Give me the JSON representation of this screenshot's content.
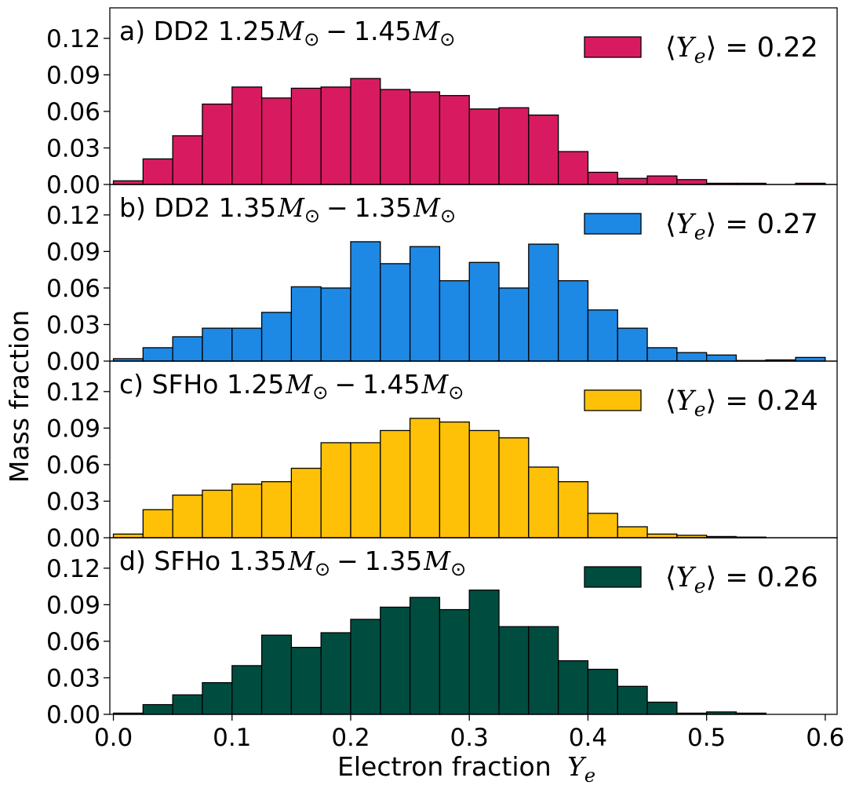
{
  "chart_data": [
    {
      "type": "bar",
      "title": "a) DD2 1.25M⊙−1.45M⊙",
      "title_parts": {
        "prefix": "a) DD2 ",
        "m1": "1.25",
        "m2": "1.45",
        "op": "−"
      },
      "legend": {
        "prefix": "⟨",
        "var": "Y",
        "sub": "e",
        "rest": "⟩ = 0.22",
        "value": 0.22
      },
      "color": "#d81b60",
      "bin_edges_start": 0.0,
      "bin_width": 0.025,
      "values": [
        0.003,
        0.021,
        0.04,
        0.066,
        0.08,
        0.071,
        0.079,
        0.08,
        0.087,
        0.078,
        0.076,
        0.073,
        0.062,
        0.063,
        0.057,
        0.027,
        0.01,
        0.005,
        0.007,
        0.004,
        0.001,
        0.001,
        0.0,
        0.001
      ],
      "ylim": [
        0,
        0.145
      ],
      "yticks": [
        "0.00",
        "0.03",
        "0.06",
        "0.09",
        "0.12"
      ],
      "xlim": [
        -0.003,
        0.61
      ]
    },
    {
      "type": "bar",
      "title": "b) DD2 1.35M⊙−1.35M⊙",
      "title_parts": {
        "prefix": "b) DD2 ",
        "m1": "1.35",
        "m2": "1.35",
        "op": "−"
      },
      "legend": {
        "prefix": "⟨",
        "var": "Y",
        "sub": "e",
        "rest": "⟩ = 0.27",
        "value": 0.27
      },
      "color": "#1e88e5",
      "bin_edges_start": 0.0,
      "bin_width": 0.025,
      "values": [
        0.002,
        0.011,
        0.02,
        0.027,
        0.027,
        0.04,
        0.061,
        0.06,
        0.098,
        0.08,
        0.094,
        0.066,
        0.081,
        0.06,
        0.096,
        0.066,
        0.042,
        0.027,
        0.011,
        0.007,
        0.005,
        0.0005,
        0.001,
        0.003
      ],
      "ylim": [
        0,
        0.145
      ],
      "yticks": [
        "0.00",
        "0.03",
        "0.06",
        "0.09",
        "0.12"
      ],
      "xlim": [
        -0.003,
        0.61
      ]
    },
    {
      "type": "bar",
      "title": "c) SFHo 1.25M⊙−1.45M⊙",
      "title_parts": {
        "prefix": "c) SFHo ",
        "m1": "1.25",
        "m2": "1.45",
        "op": "−"
      },
      "legend": {
        "prefix": "⟨",
        "var": "Y",
        "sub": "e",
        "rest": "⟩ = 0.24",
        "value": 0.24
      },
      "color": "#ffc107",
      "bin_edges_start": 0.0,
      "bin_width": 0.025,
      "values": [
        0.003,
        0.023,
        0.035,
        0.039,
        0.044,
        0.046,
        0.057,
        0.078,
        0.078,
        0.088,
        0.098,
        0.095,
        0.088,
        0.082,
        0.058,
        0.046,
        0.02,
        0.009,
        0.003,
        0.002,
        0.001,
        0.0005,
        0.0,
        0.0
      ],
      "ylim": [
        0,
        0.145
      ],
      "yticks": [
        "0.00",
        "0.03",
        "0.06",
        "0.09",
        "0.12"
      ],
      "xlim": [
        -0.003,
        0.61
      ]
    },
    {
      "type": "bar",
      "title": "d) SFHo 1.35M⊙−1.35M⊙",
      "title_parts": {
        "prefix": "d) SFHo ",
        "m1": "1.35",
        "m2": "1.35",
        "op": "−"
      },
      "legend": {
        "prefix": "⟨",
        "var": "Y",
        "sub": "e",
        "rest": "⟩ = 0.26",
        "value": 0.26
      },
      "color": "#004d40",
      "bin_edges_start": 0.0,
      "bin_width": 0.025,
      "values": [
        0.001,
        0.008,
        0.016,
        0.026,
        0.04,
        0.065,
        0.055,
        0.067,
        0.078,
        0.088,
        0.096,
        0.086,
        0.102,
        0.072,
        0.072,
        0.044,
        0.037,
        0.023,
        0.01,
        0.001,
        0.002,
        0.001,
        0.0,
        0.0
      ],
      "ylim": [
        0,
        0.145
      ],
      "yticks": [
        "0.00",
        "0.03",
        "0.06",
        "0.09",
        "0.12"
      ],
      "xlim": [
        -0.003,
        0.61
      ]
    }
  ],
  "axes": {
    "xlabel": "Electron fraction",
    "xlabel_var": "Y",
    "xlabel_sub": "e",
    "ylabel": "Mass fraction",
    "xticks": [
      "0.0",
      "0.1",
      "0.2",
      "0.3",
      "0.4",
      "0.5",
      "0.6"
    ],
    "xtick_values": [
      0.0,
      0.1,
      0.2,
      0.3,
      0.4,
      0.5,
      0.6
    ]
  },
  "colors": {
    "edge": "#000000",
    "background": "#ffffff"
  }
}
